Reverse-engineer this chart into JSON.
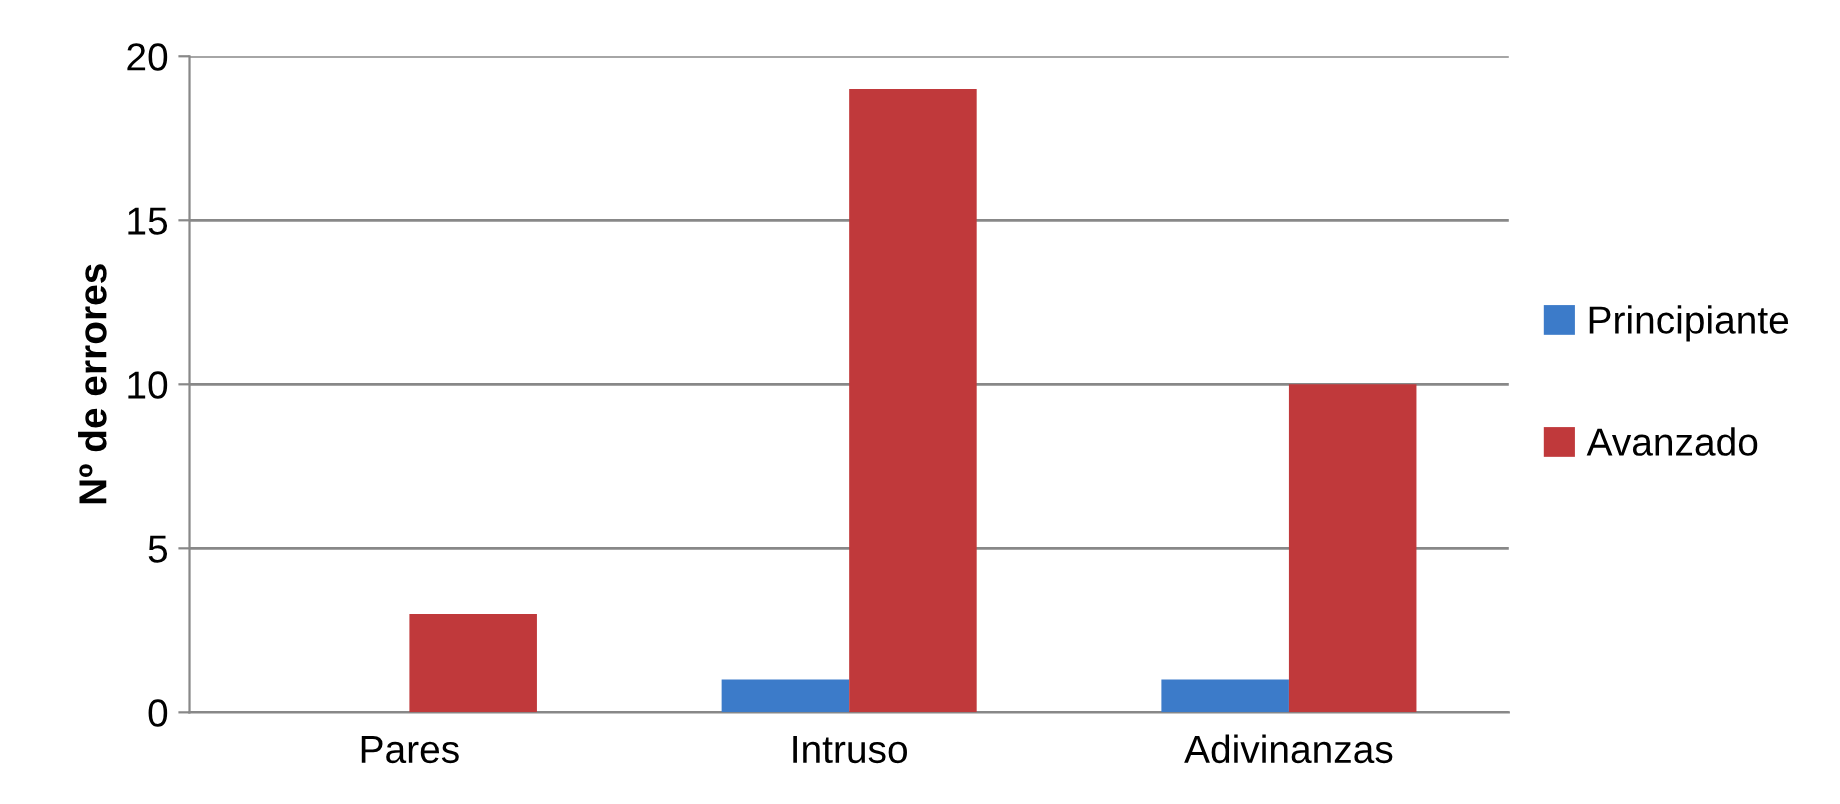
{
  "chart_data": {
    "type": "bar",
    "ylabel": "Nº de errores",
    "categories": [
      "Pares",
      "Intruso",
      "Adivinanzas"
    ],
    "series": [
      {
        "name": "Principiante",
        "color": "#3c7bc9",
        "values": [
          0,
          1,
          1
        ]
      },
      {
        "name": "Avanzado",
        "color": "#c0393b",
        "values": [
          3,
          19,
          10
        ]
      }
    ],
    "ylim": [
      0,
      20
    ],
    "yticks": [
      0,
      5,
      10,
      15,
      20
    ],
    "grid": "y",
    "legend": "right"
  }
}
